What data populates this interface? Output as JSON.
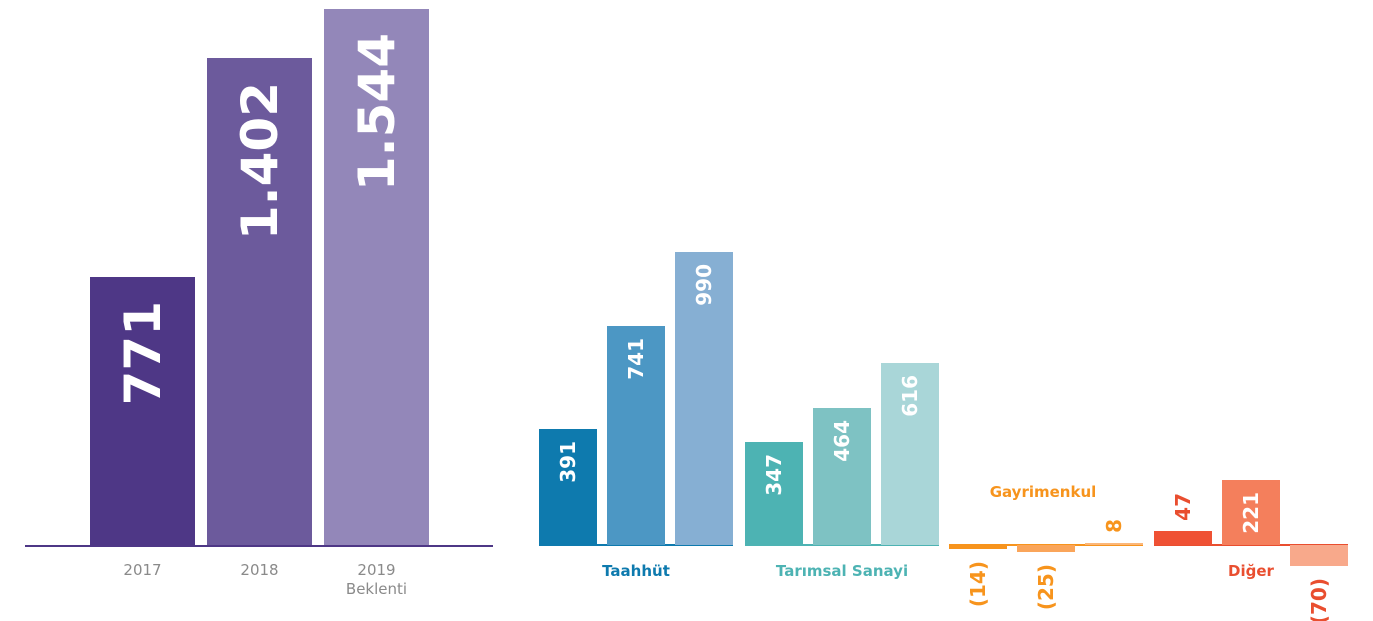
{
  "chart_data": [
    {
      "type": "bar",
      "categories": [
        "2017",
        "2018",
        "2019 Beklenti"
      ],
      "values": [
        771,
        1402,
        1544
      ],
      "value_labels": [
        "771",
        "1.402",
        "1.544"
      ],
      "colors": [
        "#4e3786",
        "#6c5a9c",
        "#9387b9"
      ],
      "axis_color": "#4e3786"
    },
    {
      "type": "grouped_bar",
      "series": [
        {
          "name": "Taahhüt",
          "color": "#0e7aae",
          "colors": [
            "#0e7aae",
            "#4c97c4",
            "#86afd3"
          ],
          "values": [
            391,
            741,
            990
          ],
          "value_labels": [
            "391",
            "741",
            "990"
          ]
        },
        {
          "name": "Tarımsal Sanayi",
          "color": "#4db3b3",
          "colors": [
            "#4db3b3",
            "#7ec2c3",
            "#a9d6d8"
          ],
          "values": [
            347,
            464,
            616
          ],
          "value_labels": [
            "347",
            "464",
            "616"
          ]
        },
        {
          "name": "Gayrimenkul",
          "color": "#f7941d",
          "colors": [
            "#f7941d",
            "#faa55a",
            "#fbb77a"
          ],
          "values": [
            -14,
            -25,
            8
          ],
          "value_labels": [
            "(14)",
            "(25)",
            "8"
          ]
        },
        {
          "name": "Diğer",
          "color": "#e94e2f",
          "colors": [
            "#ef5134",
            "#f47f5c",
            "#f8a98b"
          ],
          "values": [
            47,
            221,
            -70
          ],
          "value_labels": [
            "47",
            "221",
            "(70)"
          ]
        }
      ]
    }
  ]
}
